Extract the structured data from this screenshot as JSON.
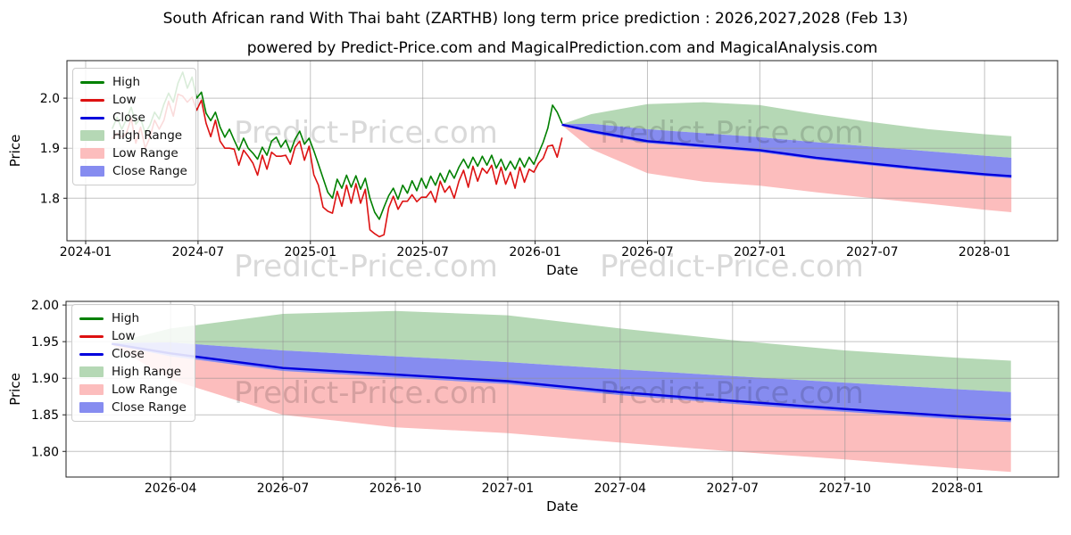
{
  "header": {
    "title": "South African rand With Thai baht (ZARTHB) long term price prediction : 2026,2027,2028 (Feb 13)",
    "subtitle": "powered by Predict-Price.com and MagicalPrediction.com and MagicalAnalysis.com"
  },
  "watermark": {
    "text": "Predict-Price.com"
  },
  "colors": {
    "high_line": "#008000",
    "low_line": "#dd1111",
    "close_line": "#0000dd",
    "high_range": "#b5d8b5",
    "low_range": "#fcbdbd",
    "close_range": "#868cf0",
    "grid": "#8f8f8f",
    "spine": "#222222",
    "watermark": "rgba(0,0,0,0.15)"
  },
  "legend": {
    "items": [
      {
        "label": "High",
        "swatch": "line",
        "color_key": "high_line"
      },
      {
        "label": "Low",
        "swatch": "line",
        "color_key": "low_line"
      },
      {
        "label": "Close",
        "swatch": "line",
        "color_key": "close_line"
      },
      {
        "label": "High Range",
        "swatch": "patch",
        "color_key": "high_range"
      },
      {
        "label": "Low Range",
        "swatch": "patch",
        "color_key": "low_range"
      },
      {
        "label": "Close Range",
        "swatch": "patch",
        "color_key": "close_range"
      }
    ]
  },
  "chart_data": {
    "type": "line",
    "title": "South African rand With Thai baht (ZARTHB) long term price prediction : 2026,2027,2028 (Feb 13)",
    "history": {
      "note": "ZARTHB daily High/Low history, x in months since 2024-01-01, from 2024-02-13 to 2026-02-13",
      "x_start": 1.43,
      "x_step": 0.25,
      "n": 97,
      "high": [
        1.94,
        1.962,
        1.938,
        1.958,
        1.982,
        1.948,
        1.96,
        1.93,
        1.946,
        1.972,
        1.958,
        1.988,
        2.01,
        1.992,
        2.03,
        2.052,
        2.02,
        2.042,
        2.0,
        2.012,
        1.97,
        1.955,
        1.972,
        1.942,
        1.922,
        1.938,
        1.916,
        1.896,
        1.92,
        1.9,
        1.89,
        1.878,
        1.902,
        1.886,
        1.914,
        1.922,
        1.902,
        1.916,
        1.892,
        1.918,
        1.934,
        1.908,
        1.92,
        1.895,
        1.868,
        1.84,
        1.812,
        1.8,
        1.838,
        1.82,
        1.846,
        1.822,
        1.845,
        1.818,
        1.84,
        1.8,
        1.772,
        1.758,
        1.782,
        1.805,
        1.82,
        1.798,
        1.826,
        1.81,
        1.835,
        1.815,
        1.84,
        1.82,
        1.844,
        1.826,
        1.85,
        1.832,
        1.856,
        1.84,
        1.862,
        1.878,
        1.86,
        1.882,
        1.864,
        1.884,
        1.866,
        1.886,
        1.86,
        1.878,
        1.856,
        1.874,
        1.858,
        1.88,
        1.862,
        1.882,
        1.868,
        1.89,
        1.912,
        1.94,
        1.986,
        1.972,
        1.95
      ],
      "low": [
        1.92,
        1.93,
        1.922,
        1.93,
        1.96,
        1.91,
        1.942,
        1.9,
        1.922,
        1.956,
        1.938,
        1.956,
        1.994,
        1.964,
        2.008,
        2.004,
        1.992,
        2.002,
        1.976,
        1.996,
        1.95,
        1.923,
        1.956,
        1.914,
        1.9,
        1.9,
        1.898,
        1.866,
        1.896,
        1.884,
        1.87,
        1.846,
        1.886,
        1.858,
        1.892,
        1.884,
        1.884,
        1.886,
        1.868,
        1.902,
        1.914,
        1.876,
        1.904,
        1.847,
        1.826,
        1.782,
        1.774,
        1.77,
        1.814,
        1.784,
        1.826,
        1.79,
        1.829,
        1.79,
        1.818,
        1.737,
        1.729,
        1.723,
        1.727,
        1.781,
        1.804,
        1.778,
        1.794,
        1.794,
        1.807,
        1.793,
        1.802,
        1.802,
        1.814,
        1.792,
        1.834,
        1.812,
        1.824,
        1.8,
        1.834,
        1.856,
        1.822,
        1.864,
        1.834,
        1.86,
        1.85,
        1.866,
        1.828,
        1.862,
        1.828,
        1.852,
        1.82,
        1.862,
        1.832,
        1.858,
        1.852,
        1.87,
        1.88,
        1.904,
        1.906,
        1.882,
        1.92
      ]
    },
    "forecast": {
      "note": "prediction 2026-02-13 to 2028-02-13, x in months since 2026-01-01",
      "x": [
        1.43,
        3,
        6,
        9,
        12,
        15,
        18,
        21,
        24,
        25.43
      ],
      "high_range_upper": [
        1.948,
        1.968,
        1.988,
        1.992,
        1.986,
        1.968,
        1.952,
        1.938,
        1.928,
        1.924
      ],
      "close_range_upper": [
        1.948,
        1.949,
        1.938,
        1.93,
        1.922,
        1.912,
        1.903,
        1.894,
        1.885,
        1.881
      ],
      "close": [
        1.947,
        1.934,
        1.914,
        1.905,
        1.896,
        1.881,
        1.869,
        1.858,
        1.848,
        1.844
      ],
      "close_range_lower": [
        1.946,
        1.93,
        1.91,
        1.901,
        1.892,
        1.877,
        1.865,
        1.854,
        1.844,
        1.84
      ],
      "low_range_lower": [
        1.946,
        1.898,
        1.85,
        1.833,
        1.825,
        1.812,
        1.8,
        1.789,
        1.777,
        1.772
      ]
    },
    "charts": [
      {
        "id": "top",
        "xlabel": "Date",
        "ylabel": "Price",
        "x_unit": "months since 2024-01-01",
        "xlim": [
          -1.0,
          51.9
        ],
        "ylim": [
          1.715,
          2.075
        ],
        "show_history": true,
        "forecast_offset": 24,
        "xticks": [
          {
            "t": 0,
            "label": "2024-01"
          },
          {
            "t": 6,
            "label": "2024-07"
          },
          {
            "t": 12,
            "label": "2025-01"
          },
          {
            "t": 18,
            "label": "2025-07"
          },
          {
            "t": 24,
            "label": "2026-01"
          },
          {
            "t": 30,
            "label": "2026-07"
          },
          {
            "t": 36,
            "label": "2027-01"
          },
          {
            "t": 42,
            "label": "2027-07"
          },
          {
            "t": 48,
            "label": "2028-01"
          }
        ],
        "yticks": [
          {
            "v": 1.8,
            "label": "1.8"
          },
          {
            "v": 1.9,
            "label": "1.9"
          },
          {
            "v": 2.0,
            "label": "2.0"
          }
        ]
      },
      {
        "id": "bottom",
        "xlabel": "Date",
        "ylabel": "Price",
        "x_unit": "months since 2026-01-01",
        "xlim": [
          0.21,
          26.7
        ],
        "ylim": [
          1.765,
          2.005
        ],
        "show_history": false,
        "forecast_offset": 0,
        "xticks": [
          {
            "t": 3,
            "label": "2026-04"
          },
          {
            "t": 6,
            "label": "2026-07"
          },
          {
            "t": 9,
            "label": "2026-10"
          },
          {
            "t": 12,
            "label": "2027-01"
          },
          {
            "t": 15,
            "label": "2027-04"
          },
          {
            "t": 18,
            "label": "2027-07"
          },
          {
            "t": 21,
            "label": "2027-10"
          },
          {
            "t": 24,
            "label": "2028-01"
          }
        ],
        "yticks": [
          {
            "v": 1.8,
            "label": "1.80"
          },
          {
            "v": 1.85,
            "label": "1.85"
          },
          {
            "v": 1.9,
            "label": "1.90"
          },
          {
            "v": 1.95,
            "label": "1.95"
          },
          {
            "v": 2.0,
            "label": "2.00"
          }
        ]
      }
    ]
  }
}
